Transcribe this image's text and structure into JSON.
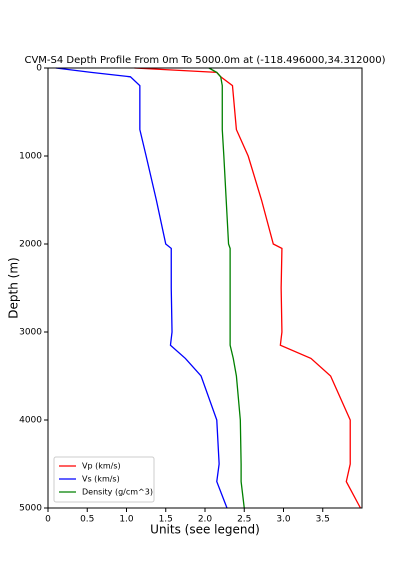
{
  "chart_data": {
    "type": "line",
    "title": "CVM-S4 Depth Profile From 0m To 5000.0m at (-118.496000,34.312000)",
    "x_label": "Units (see legend)",
    "y_label": "Depth (m)",
    "depths": [
      0,
      50,
      100,
      200,
      700,
      1000,
      1500,
      2000,
      2050,
      2500,
      3000,
      3150,
      3300,
      3500,
      4000,
      4500,
      4700,
      5000
    ],
    "series": [
      {
        "name": "Vp (km/s)",
        "color": "#ff0000",
        "values": [
          1.1,
          2.15,
          2.2,
          2.35,
          2.4,
          2.55,
          2.72,
          2.87,
          2.98,
          2.97,
          2.98,
          2.96,
          3.35,
          3.6,
          3.85,
          3.85,
          3.8,
          3.98
        ]
      },
      {
        "name": "Vs (km/s)",
        "color": "#0000ff",
        "values": [
          0.1,
          0.55,
          1.05,
          1.17,
          1.17,
          1.25,
          1.38,
          1.5,
          1.57,
          1.57,
          1.58,
          1.56,
          1.75,
          1.95,
          2.15,
          2.18,
          2.15,
          2.28
        ]
      },
      {
        "name": "Density (g/cm^3)",
        "color": "#008000",
        "values": [
          2.05,
          2.15,
          2.2,
          2.22,
          2.22,
          2.24,
          2.27,
          2.3,
          2.32,
          2.32,
          2.32,
          2.32,
          2.36,
          2.4,
          2.45,
          2.46,
          2.46,
          2.5
        ]
      }
    ],
    "xlim": [
      0,
      4
    ],
    "xticks": [
      0,
      0.5,
      {
        "value": 1,
        "label": "1.0"
      },
      1.5,
      {
        "value": 2,
        "label": "2.0"
      },
      2.5,
      {
        "value": 3,
        "label": "3.0"
      },
      3.5
    ],
    "ylim": [
      0,
      5000
    ],
    "yticks": [
      0,
      1000,
      2000,
      3000,
      4000,
      5000
    ],
    "y_inverted": true,
    "legend": "lower left"
  }
}
